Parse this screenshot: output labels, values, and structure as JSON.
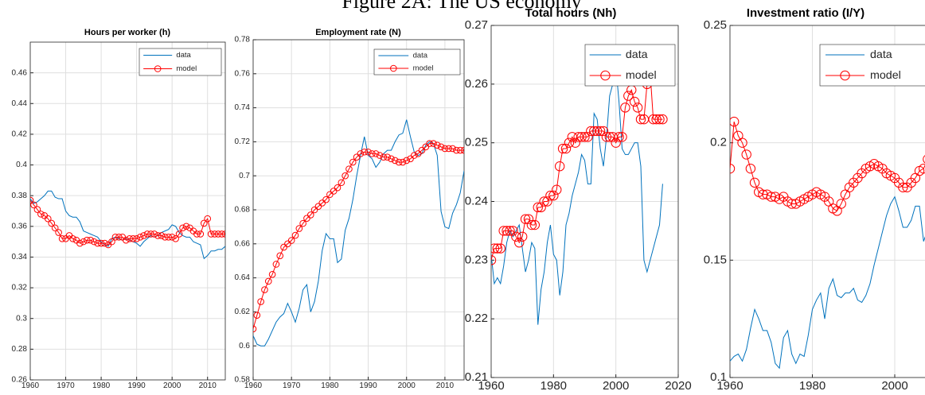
{
  "title": "Figure 2A: The US economy",
  "chart_data": [
    {
      "type": "line",
      "title": "Hours per worker (h)",
      "x": [
        1960,
        1961,
        1962,
        1963,
        1964,
        1965,
        1966,
        1967,
        1968,
        1969,
        1970,
        1971,
        1972,
        1973,
        1974,
        1975,
        1976,
        1977,
        1978,
        1979,
        1980,
        1981,
        1982,
        1983,
        1984,
        1985,
        1986,
        1987,
        1988,
        1989,
        1990,
        1991,
        1992,
        1993,
        1994,
        1995,
        1996,
        1997,
        1998,
        1999,
        2000,
        2001,
        2002,
        2003,
        2004,
        2005,
        2006,
        2007,
        2008,
        2009,
        2010,
        2011,
        2012,
        2013,
        2014,
        2015
      ],
      "series": [
        {
          "name": "data",
          "color": "#0072bd",
          "marker": false,
          "values": [
            0.378,
            0.375,
            0.376,
            0.378,
            0.38,
            0.383,
            0.383,
            0.379,
            0.378,
            0.378,
            0.37,
            0.367,
            0.366,
            0.366,
            0.363,
            0.357,
            0.356,
            0.355,
            0.354,
            0.353,
            0.35,
            0.348,
            0.347,
            0.352,
            0.353,
            0.352,
            0.351,
            0.352,
            0.351,
            0.35,
            0.349,
            0.347,
            0.35,
            0.352,
            0.354,
            0.353,
            0.354,
            0.356,
            0.357,
            0.358,
            0.361,
            0.36,
            0.356,
            0.354,
            0.353,
            0.353,
            0.35,
            0.349,
            0.348,
            0.339,
            0.341,
            0.344,
            0.344,
            0.345,
            0.345,
            0.347
          ]
        },
        {
          "name": "model",
          "color": "#ff0000",
          "marker": true,
          "values": [
            0.377,
            0.374,
            0.371,
            0.368,
            0.367,
            0.365,
            0.362,
            0.359,
            0.356,
            0.352,
            0.352,
            0.354,
            0.352,
            0.351,
            0.349,
            0.35,
            0.351,
            0.351,
            0.35,
            0.349,
            0.349,
            0.349,
            0.348,
            0.35,
            0.353,
            0.353,
            0.353,
            0.351,
            0.352,
            0.352,
            0.352,
            0.353,
            0.354,
            0.355,
            0.355,
            0.355,
            0.354,
            0.354,
            0.353,
            0.353,
            0.353,
            0.352,
            0.355,
            0.359,
            0.36,
            0.359,
            0.357,
            0.355,
            0.355,
            0.362,
            0.365,
            0.355,
            0.355,
            0.355,
            0.355,
            0.355
          ]
        }
      ],
      "xlim": [
        1960,
        2015
      ],
      "xticks": [
        1960,
        1970,
        1980,
        1990,
        2000,
        2010
      ],
      "ylim": [
        0.26,
        0.48
      ],
      "yticks": [
        0.26,
        0.28,
        0.3,
        0.32,
        0.34,
        0.36,
        0.38,
        0.4,
        0.42,
        0.44,
        0.46
      ],
      "grid": true,
      "legend": "top-right"
    },
    {
      "type": "line",
      "title": "Employment rate (N)",
      "x": [
        1960,
        1961,
        1962,
        1963,
        1964,
        1965,
        1966,
        1967,
        1968,
        1969,
        1970,
        1971,
        1972,
        1973,
        1974,
        1975,
        1976,
        1977,
        1978,
        1979,
        1980,
        1981,
        1982,
        1983,
        1984,
        1985,
        1986,
        1987,
        1988,
        1989,
        1990,
        1991,
        1992,
        1993,
        1994,
        1995,
        1996,
        1997,
        1998,
        1999,
        2000,
        2001,
        2002,
        2003,
        2004,
        2005,
        2006,
        2007,
        2008,
        2009,
        2010,
        2011,
        2012,
        2013,
        2014,
        2015
      ],
      "series": [
        {
          "name": "data",
          "color": "#0072bd",
          "marker": false,
          "values": [
            0.606,
            0.601,
            0.6,
            0.6,
            0.604,
            0.609,
            0.614,
            0.617,
            0.619,
            0.625,
            0.62,
            0.614,
            0.622,
            0.633,
            0.636,
            0.62,
            0.626,
            0.638,
            0.656,
            0.666,
            0.663,
            0.663,
            0.649,
            0.651,
            0.668,
            0.675,
            0.686,
            0.7,
            0.712,
            0.723,
            0.712,
            0.71,
            0.705,
            0.708,
            0.713,
            0.715,
            0.715,
            0.72,
            0.724,
            0.725,
            0.733,
            0.723,
            0.714,
            0.712,
            0.713,
            0.718,
            0.72,
            0.719,
            0.712,
            0.679,
            0.67,
            0.669,
            0.678,
            0.683,
            0.69,
            0.703
          ]
        },
        {
          "name": "model",
          "color": "#ff0000",
          "marker": true,
          "values": [
            0.61,
            0.618,
            0.626,
            0.633,
            0.638,
            0.642,
            0.648,
            0.653,
            0.658,
            0.66,
            0.662,
            0.665,
            0.669,
            0.672,
            0.675,
            0.677,
            0.68,
            0.682,
            0.684,
            0.686,
            0.689,
            0.691,
            0.693,
            0.696,
            0.7,
            0.704,
            0.708,
            0.711,
            0.713,
            0.714,
            0.714,
            0.713,
            0.713,
            0.712,
            0.711,
            0.711,
            0.71,
            0.709,
            0.708,
            0.708,
            0.709,
            0.71,
            0.712,
            0.713,
            0.715,
            0.717,
            0.719,
            0.719,
            0.718,
            0.717,
            0.716,
            0.716,
            0.716,
            0.715,
            0.715,
            0.715
          ]
        }
      ],
      "xlim": [
        1960,
        2015
      ],
      "xticks": [
        1960,
        1970,
        1980,
        1990,
        2000,
        2010
      ],
      "ylim": [
        0.58,
        0.78
      ],
      "yticks": [
        0.58,
        0.6,
        0.62,
        0.64,
        0.66,
        0.68,
        0.7,
        0.72,
        0.74,
        0.76,
        0.78
      ],
      "grid": true,
      "legend": "top-right"
    },
    {
      "type": "line",
      "title": "Total hours (Nh)",
      "x": [
        1960,
        1961,
        1962,
        1963,
        1964,
        1965,
        1966,
        1967,
        1968,
        1969,
        1970,
        1971,
        1972,
        1973,
        1974,
        1975,
        1976,
        1977,
        1978,
        1979,
        1980,
        1981,
        1982,
        1983,
        1984,
        1985,
        1986,
        1987,
        1988,
        1989,
        1990,
        1991,
        1992,
        1993,
        1994,
        1995,
        1996,
        1997,
        1998,
        1999,
        2000,
        2001,
        2002,
        2003,
        2004,
        2005,
        2006,
        2007,
        2008,
        2009,
        2010,
        2011,
        2012,
        2013,
        2014,
        2015
      ],
      "series": [
        {
          "name": "data",
          "color": "#0072bd",
          "marker": false,
          "values": [
            0.231,
            0.226,
            0.227,
            0.226,
            0.229,
            0.233,
            0.235,
            0.234,
            0.235,
            0.236,
            0.232,
            0.228,
            0.23,
            0.233,
            0.232,
            0.219,
            0.225,
            0.228,
            0.233,
            0.236,
            0.231,
            0.23,
            0.224,
            0.228,
            0.236,
            0.238,
            0.241,
            0.243,
            0.245,
            0.248,
            0.247,
            0.243,
            0.243,
            0.255,
            0.254,
            0.249,
            0.246,
            0.251,
            0.258,
            0.26,
            0.263,
            0.257,
            0.249,
            0.248,
            0.248,
            0.249,
            0.25,
            0.25,
            0.246,
            0.23,
            0.228,
            0.23,
            0.232,
            0.234,
            0.236,
            0.243
          ]
        },
        {
          "name": "model",
          "color": "#ff0000",
          "marker": true,
          "values": [
            0.23,
            0.232,
            0.232,
            0.232,
            0.235,
            0.235,
            0.235,
            0.235,
            0.234,
            0.233,
            0.234,
            0.237,
            0.237,
            0.236,
            0.236,
            0.239,
            0.239,
            0.24,
            0.24,
            0.241,
            0.241,
            0.242,
            0.246,
            0.249,
            0.249,
            0.25,
            0.251,
            0.25,
            0.251,
            0.251,
            0.251,
            0.251,
            0.252,
            0.252,
            0.252,
            0.252,
            0.252,
            0.251,
            0.251,
            0.251,
            0.25,
            0.251,
            0.251,
            0.256,
            0.258,
            0.259,
            0.257,
            0.256,
            0.254,
            0.254,
            0.26,
            0.262,
            0.254,
            0.254,
            0.254,
            0.254
          ]
        }
      ],
      "xlim": [
        1960,
        2020
      ],
      "xticks": [
        1960,
        1980,
        2000,
        2020
      ],
      "ylim": [
        0.21,
        0.27
      ],
      "yticks": [
        0.21,
        0.22,
        0.23,
        0.24,
        0.25,
        0.26,
        0.27
      ],
      "grid": true,
      "legend": "top-right"
    },
    {
      "type": "line",
      "title": "Investment ratio (I/Y)",
      "x": [
        1960,
        1961,
        1962,
        1963,
        1964,
        1965,
        1966,
        1967,
        1968,
        1969,
        1970,
        1971,
        1972,
        1973,
        1974,
        1975,
        1976,
        1977,
        1978,
        1979,
        1980,
        1981,
        1982,
        1983,
        1984,
        1985,
        1986,
        1987,
        1988,
        1989,
        1990,
        1991,
        1992,
        1993,
        1994,
        1995,
        1996,
        1997,
        1998,
        1999,
        2000,
        2001,
        2002,
        2003,
        2004,
        2005,
        2006,
        2007,
        2008,
        2009
      ],
      "series": [
        {
          "name": "data",
          "color": "#0072bd",
          "marker": false,
          "values": [
            0.107,
            0.109,
            0.11,
            0.107,
            0.112,
            0.121,
            0.129,
            0.125,
            0.12,
            0.12,
            0.115,
            0.106,
            0.104,
            0.117,
            0.12,
            0.11,
            0.106,
            0.11,
            0.109,
            0.118,
            0.129,
            0.133,
            0.136,
            0.125,
            0.138,
            0.142,
            0.135,
            0.134,
            0.136,
            0.136,
            0.138,
            0.133,
            0.132,
            0.135,
            0.14,
            0.148,
            0.155,
            0.162,
            0.169,
            0.174,
            0.177,
            0.171,
            0.164,
            0.164,
            0.167,
            0.173,
            0.173,
            0.158,
            0.163,
            0.17
          ]
        },
        {
          "name": "model",
          "color": "#ff0000",
          "marker": true,
          "values": [
            0.189,
            0.209,
            0.203,
            0.2,
            0.195,
            0.189,
            0.183,
            0.179,
            0.178,
            0.178,
            0.177,
            0.177,
            0.176,
            0.177,
            0.175,
            0.174,
            0.174,
            0.175,
            0.176,
            0.177,
            0.178,
            0.179,
            0.178,
            0.177,
            0.175,
            0.172,
            0.171,
            0.174,
            0.178,
            0.181,
            0.183,
            0.185,
            0.187,
            0.189,
            0.19,
            0.191,
            0.19,
            0.189,
            0.187,
            0.186,
            0.185,
            0.183,
            0.181,
            0.181,
            0.183,
            0.185,
            0.188,
            0.189,
            0.193,
            0.193
          ]
        }
      ],
      "xlim": [
        1960,
        2020
      ],
      "xticks": [
        1960,
        1980,
        2000
      ],
      "ylim": [
        0.1,
        0.25
      ],
      "yticks": [
        0.1,
        0.15,
        0.2,
        0.25
      ],
      "grid": true,
      "legend": "top-right"
    }
  ]
}
